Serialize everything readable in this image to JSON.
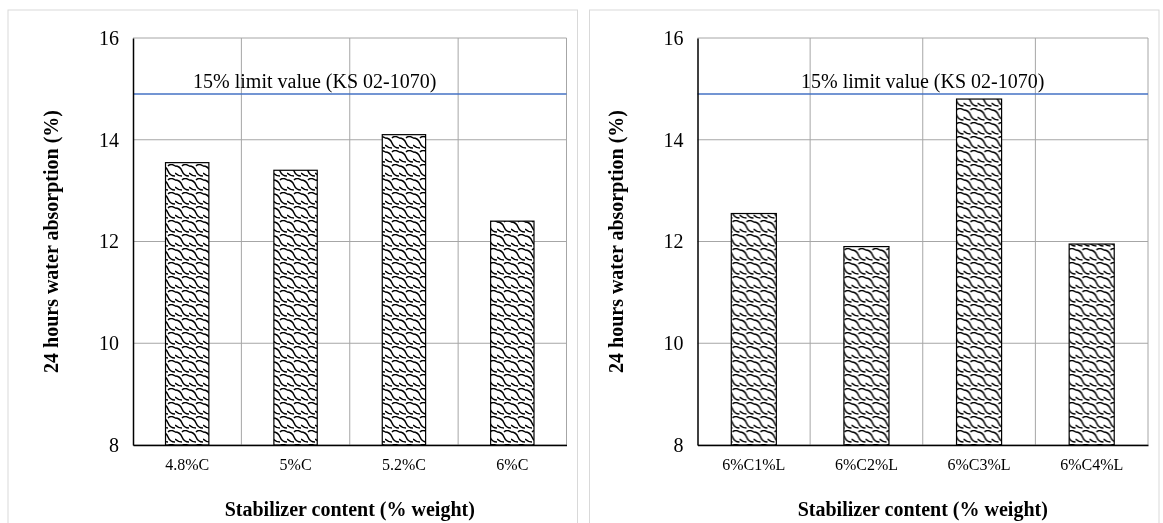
{
  "chart_data": [
    {
      "type": "bar",
      "categories": [
        "4.8%C",
        "5%C",
        "5.2%C",
        "6%C"
      ],
      "values": [
        13.55,
        13.4,
        14.1,
        12.4
      ],
      "color": "#000000",
      "xlabel": "Stabilizer content (% weight)",
      "ylabel": "24 hours water absorption (%)",
      "ylim": [
        8,
        16
      ],
      "yticks": [
        8,
        10,
        12,
        14,
        16
      ],
      "grid": true,
      "ref_lines": [
        {
          "axis": "y",
          "value": 14.9,
          "label": "15% limit value (KS 02-1070)",
          "color": "#4472c4"
        }
      ]
    },
    {
      "type": "bar",
      "categories": [
        "6%C1%L",
        "6%C2%L",
        "6%C3%L",
        "6%C4%L"
      ],
      "values": [
        12.55,
        11.9,
        14.8,
        11.95
      ],
      "color": "#000000",
      "xlabel": "Stabilizer content (% weight)",
      "ylabel": "24 hours water absorption (%)",
      "ylim": [
        8,
        16
      ],
      "yticks": [
        8,
        10,
        12,
        14,
        16
      ],
      "grid": true,
      "ref_lines": [
        {
          "axis": "y",
          "value": 14.9,
          "label": "15% limit value (KS 02-1070)",
          "color": "#4472c4"
        }
      ]
    }
  ]
}
